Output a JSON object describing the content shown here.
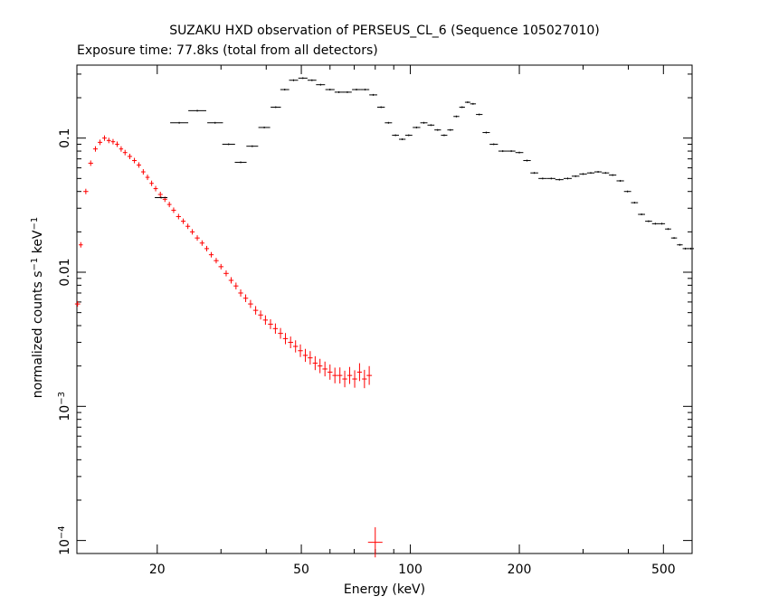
{
  "chart_data": {
    "type": "scatter",
    "title": "SUZAKU HXD observation of PERSEUS_CL_6 (Sequence 105027010)",
    "subtitle": "Exposure time: 77.8ks (total from all detectors)",
    "xlabel": "Energy (keV)",
    "ylabel": "normalized counts s-1 keV-1",
    "x_scale": "log",
    "y_scale": "log",
    "xlim": [
      12,
      600
    ],
    "ylim": [
      8e-05,
      0.35
    ],
    "x_ticks": [
      {
        "value": 20,
        "label": "20"
      },
      {
        "value": 50,
        "label": "50"
      },
      {
        "value": 100,
        "label": "100"
      },
      {
        "value": 200,
        "label": "200"
      },
      {
        "value": 500,
        "label": "500"
      }
    ],
    "y_ticks": [
      {
        "value": 0.1,
        "label": "0.1"
      },
      {
        "value": 0.01,
        "label": "0.01"
      },
      {
        "value": 0.001,
        "label": "10",
        "exp": "−3"
      },
      {
        "value": 0.0001,
        "label": "10",
        "exp": "−4"
      }
    ],
    "series": [
      {
        "color": "#ff0000",
        "points": [
          [
            12.05,
            0.0058
          ],
          [
            12.3,
            0.016
          ],
          [
            12.7,
            0.04
          ],
          [
            13.1,
            0.065
          ],
          [
            13.5,
            0.083
          ],
          [
            13.9,
            0.093
          ],
          [
            14.3,
            0.1
          ],
          [
            14.7,
            0.096
          ],
          [
            15.1,
            0.094
          ],
          [
            15.5,
            0.09
          ],
          [
            15.9,
            0.083
          ],
          [
            16.3,
            0.078
          ],
          [
            16.8,
            0.073
          ],
          [
            17.3,
            0.068
          ],
          [
            17.8,
            0.063
          ],
          [
            18.3,
            0.056
          ],
          [
            18.8,
            0.051
          ],
          [
            19.3,
            0.046
          ],
          [
            19.8,
            0.042
          ],
          [
            20.4,
            0.038
          ],
          [
            21.0,
            0.035
          ],
          [
            21.6,
            0.032
          ],
          [
            22.2,
            0.029
          ],
          [
            22.9,
            0.026
          ],
          [
            23.6,
            0.024
          ],
          [
            24.3,
            0.022
          ],
          [
            25.0,
            0.02
          ],
          [
            25.8,
            0.018
          ],
          [
            26.6,
            0.0165
          ],
          [
            27.4,
            0.015
          ],
          [
            28.2,
            0.0135
          ],
          [
            29.1,
            0.0122
          ],
          [
            30.0,
            0.011
          ],
          [
            31.0,
            0.0098
          ],
          [
            32.0,
            0.0087
          ],
          [
            33.0,
            0.0079
          ],
          [
            34.0,
            0.007
          ],
          [
            35.1,
            0.0064
          ],
          [
            36.2,
            0.0058
          ],
          [
            37.4,
            0.0052
          ],
          [
            38.6,
            0.0048
          ],
          [
            39.8,
            0.0044
          ],
          [
            41.1,
            0.0041
          ],
          [
            42.4,
            0.0038
          ],
          [
            43.8,
            0.0035
          ],
          [
            45.2,
            0.0032
          ],
          [
            46.7,
            0.003
          ],
          [
            48.2,
            0.0028
          ],
          [
            49.7,
            0.0026
          ],
          [
            51.3,
            0.0024
          ],
          [
            52.9,
            0.0023
          ],
          [
            54.6,
            0.0021
          ],
          [
            56.3,
            0.002
          ],
          [
            58.1,
            0.0019
          ],
          [
            60.0,
            0.0018
          ],
          [
            61.9,
            0.0017
          ],
          [
            63.9,
            0.0017
          ],
          [
            65.9,
            0.0016
          ],
          [
            68.0,
            0.0017
          ],
          [
            70.2,
            0.0016
          ],
          [
            72.4,
            0.0018
          ],
          [
            74.7,
            0.0016
          ],
          [
            77.0,
            0.0017
          ],
          [
            80.0,
            9.7e-05
          ]
        ]
      },
      {
        "color": "#000000",
        "points": [
          [
            20.5,
            0.036
          ],
          [
            23.0,
            0.13
          ],
          [
            25.8,
            0.16
          ],
          [
            28.9,
            0.13
          ],
          [
            31.5,
            0.09
          ],
          [
            34.0,
            0.066
          ],
          [
            36.6,
            0.087
          ],
          [
            39.5,
            0.12
          ],
          [
            42.5,
            0.17
          ],
          [
            45.0,
            0.23
          ],
          [
            47.6,
            0.27
          ],
          [
            50.5,
            0.28
          ],
          [
            53.5,
            0.27
          ],
          [
            56.5,
            0.25
          ],
          [
            60.0,
            0.23
          ],
          [
            63.5,
            0.22
          ],
          [
            67.0,
            0.22
          ],
          [
            71.0,
            0.23
          ],
          [
            75.0,
            0.23
          ],
          [
            79.0,
            0.21
          ],
          [
            83.0,
            0.17
          ],
          [
            87.0,
            0.13
          ],
          [
            91.0,
            0.105
          ],
          [
            95.0,
            0.098
          ],
          [
            99.0,
            0.105
          ],
          [
            104.0,
            0.12
          ],
          [
            109.0,
            0.13
          ],
          [
            114.0,
            0.125
          ],
          [
            119.0,
            0.115
          ],
          [
            124.0,
            0.105
          ],
          [
            129.0,
            0.115
          ],
          [
            134.0,
            0.145
          ],
          [
            139.0,
            0.17
          ],
          [
            144.0,
            0.185
          ],
          [
            149.0,
            0.18
          ],
          [
            155.0,
            0.15
          ],
          [
            162.0,
            0.11
          ],
          [
            170.0,
            0.09
          ],
          [
            180.0,
            0.08
          ],
          [
            190.0,
            0.08
          ],
          [
            200.0,
            0.078
          ],
          [
            210.0,
            0.068
          ],
          [
            220.0,
            0.055
          ],
          [
            232.0,
            0.05
          ],
          [
            245.0,
            0.05
          ],
          [
            258.0,
            0.049
          ],
          [
            272.0,
            0.05
          ],
          [
            286.0,
            0.052
          ],
          [
            300.0,
            0.054
          ],
          [
            315.0,
            0.055
          ],
          [
            330.0,
            0.056
          ],
          [
            346.0,
            0.055
          ],
          [
            362.0,
            0.053
          ],
          [
            380.0,
            0.048
          ],
          [
            398.0,
            0.04
          ],
          [
            416.0,
            0.033
          ],
          [
            435.0,
            0.027
          ],
          [
            455.0,
            0.024
          ],
          [
            475.0,
            0.023
          ],
          [
            495.0,
            0.023
          ],
          [
            515.0,
            0.021
          ],
          [
            535.0,
            0.018
          ],
          [
            555.0,
            0.016
          ],
          [
            575.0,
            0.015
          ],
          [
            595.0,
            0.015
          ]
        ]
      }
    ]
  }
}
